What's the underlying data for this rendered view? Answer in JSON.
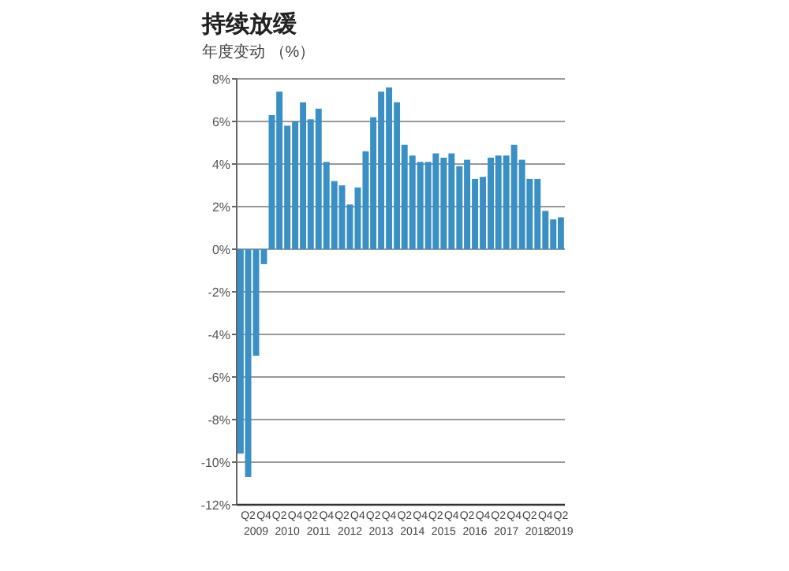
{
  "chart_data": {
    "type": "bar",
    "title": "持续放缓",
    "subtitle": "年度变动 （%）",
    "x": [
      "2009-02-15",
      "2009-05-15",
      "2009-08-15",
      "2009-11-15",
      "2010-02-15",
      "2010-05-15",
      "2010-08-15",
      "2010-11-15",
      "2011-02-15",
      "2011-05-15",
      "2011-08-15",
      "2011-11-15",
      "2012-02-15",
      "2012-05-15",
      "2012-08-15",
      "2012-11-15",
      "2013-02-15",
      "2013-05-15",
      "2013-08-15",
      "2013-11-15",
      "2014-02-15",
      "2014-05-15",
      "2014-08-15",
      "2014-11-15",
      "2015-02-15",
      "2015-05-15",
      "2015-08-15",
      "2015-11-15",
      "2016-02-15",
      "2016-05-15",
      "2016-08-15",
      "2016-11-15",
      "2017-02-15",
      "2017-05-15",
      "2017-08-15",
      "2017-11-15",
      "2018-02-15",
      "2018-05-15",
      "2018-08-15",
      "2018-11-15",
      "2019-02-15",
      "2019-05-15"
    ],
    "values": [
      -9.6,
      -10.7,
      -5.0,
      -0.7,
      6.3,
      7.4,
      5.8,
      6.0,
      6.9,
      6.1,
      6.6,
      4.1,
      3.2,
      3.0,
      2.1,
      2.9,
      4.6,
      6.2,
      7.4,
      7.6,
      6.9,
      4.9,
      4.4,
      4.1,
      4.1,
      4.5,
      4.3,
      4.5,
      3.9,
      4.2,
      3.3,
      3.4,
      4.3,
      4.4,
      4.4,
      4.9,
      4.2,
      3.3,
      3.3,
      1.8,
      1.4,
      1.5
    ],
    "color": "#3a8fc4",
    "xlim": [
      "2009-01",
      "2019-07"
    ],
    "xticks": [
      {
        "value": "2009-05-15",
        "label": "Q2"
      },
      {
        "value": "2009-11-15",
        "label": "Q4"
      },
      {
        "value": "2010-05-15",
        "label": "Q2"
      },
      {
        "value": "2010-11-15",
        "label": "Q4"
      },
      {
        "value": "2011-05-15",
        "label": "Q2"
      },
      {
        "value": "2011-11-15",
        "label": "Q4"
      },
      {
        "value": "2012-05-15",
        "label": "Q2"
      },
      {
        "value": "2012-11-15",
        "label": "Q4"
      },
      {
        "value": "2013-05-15",
        "label": "Q2"
      },
      {
        "value": "2013-11-15",
        "label": "Q4"
      },
      {
        "value": "2014-05-15",
        "label": "Q2"
      },
      {
        "value": "2014-11-15",
        "label": "Q4"
      },
      {
        "value": "2015-05-15",
        "label": "Q2"
      },
      {
        "value": "2015-11-15",
        "label": "Q4"
      },
      {
        "value": "2016-05-15",
        "label": "Q2"
      },
      {
        "value": "2016-11-15",
        "label": "Q4"
      },
      {
        "value": "2017-05-15",
        "label": "Q2"
      },
      {
        "value": "2017-11-15",
        "label": "Q4"
      },
      {
        "value": "2018-05-15",
        "label": "Q2"
      },
      {
        "value": "2018-11-15",
        "label": "Q4"
      },
      {
        "value": "2019-05-15",
        "label": "Q2"
      }
    ],
    "ylim": [
      -12,
      8
    ],
    "yticks": [
      {
        "value": -12,
        "label": "-12%"
      },
      {
        "value": -10,
        "label": "-10%"
      },
      {
        "value": -8,
        "label": "-8%"
      },
      {
        "value": -6,
        "label": "-6%"
      },
      {
        "value": -4,
        "label": "-4%"
      },
      {
        "value": -2,
        "label": "-2%"
      },
      {
        "value": 0,
        "label": "0%"
      },
      {
        "value": 2,
        "label": "2%"
      },
      {
        "value": 4,
        "label": "4%"
      },
      {
        "value": 6,
        "label": "6%"
      },
      {
        "value": 8,
        "label": "8%"
      }
    ],
    "grid": "y",
    "annotations": [
      "2009",
      "2010",
      "2011",
      "2012",
      "2013",
      "2014",
      "2015",
      "2016",
      "2017",
      "2018",
      "2019"
    ]
  }
}
